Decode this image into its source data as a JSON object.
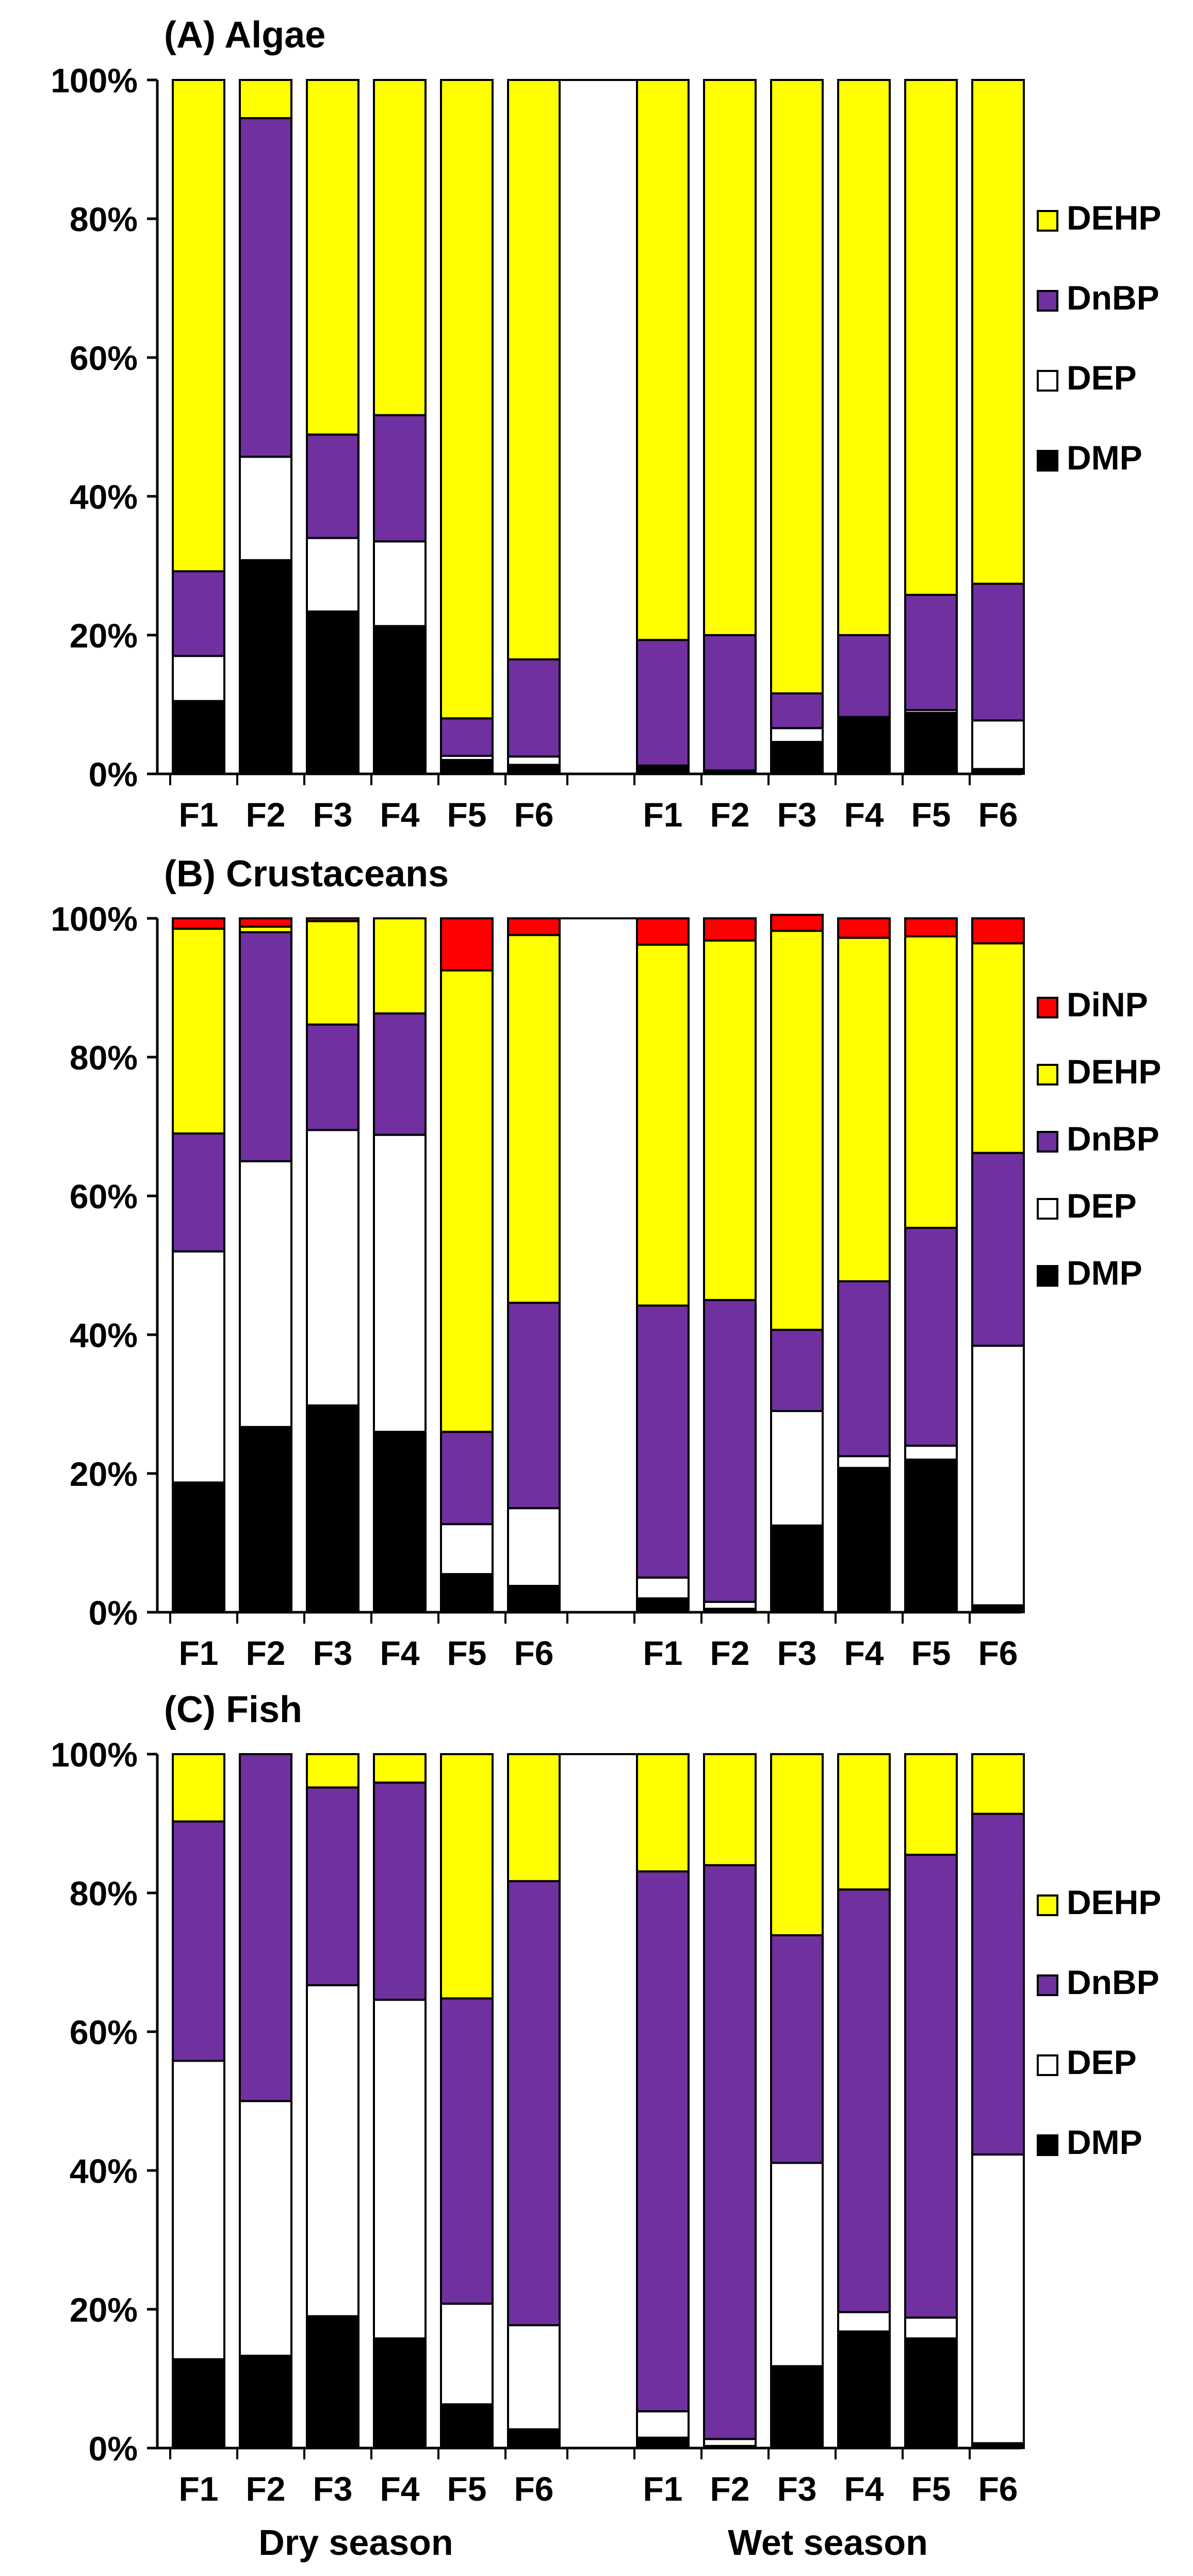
{
  "colors": {
    "DMP": "#000000",
    "DEP": "#ffffff",
    "DnBP": "#7030a0",
    "DEHP": "#ffff00",
    "DiNP": "#ff0000",
    "stroke": "#000000"
  },
  "x_labels": {
    "dry_season": "Dry season",
    "wet_season": "Wet season"
  },
  "chart_data": [
    {
      "type": "bar",
      "stacked": true,
      "title": "(A) Algae",
      "ylabel": "",
      "ylim": [
        0,
        100
      ],
      "y_ticks": [
        "0%",
        "20%",
        "40%",
        "60%",
        "80%",
        "100%"
      ],
      "groups": [
        {
          "name": "Dry season",
          "categories": [
            "F1",
            "F2",
            "F3",
            "F4",
            "F5",
            "F6"
          ]
        },
        {
          "name": "Wet season",
          "categories": [
            "F1",
            "F2",
            "F3",
            "F4",
            "F5",
            "F6"
          ]
        }
      ],
      "legend": [
        "DEHP",
        "DnBP",
        "DEP",
        "DMP"
      ],
      "series": [
        {
          "name": "DMP",
          "values": [
            10.5,
            30.8,
            23.4,
            21.3,
            2.0,
            1.3,
            1.0,
            0.3,
            4.6,
            8.0,
            8.8,
            0.7
          ]
        },
        {
          "name": "DEP",
          "values": [
            6.5,
            14.9,
            10.6,
            12.2,
            0.6,
            1.2,
            0.2,
            0.2,
            2.0,
            0.2,
            0.4,
            7.0
          ]
        },
        {
          "name": "DnBP",
          "values": [
            12.2,
            48.8,
            14.9,
            18.2,
            5.4,
            14.0,
            18.1,
            19.5,
            5.0,
            11.8,
            16.6,
            19.7
          ]
        },
        {
          "name": "DEHP",
          "values": [
            70.8,
            5.5,
            51.1,
            48.3,
            92.0,
            83.5,
            80.7,
            80.0,
            88.4,
            80.0,
            74.2,
            72.6
          ]
        }
      ]
    },
    {
      "type": "bar",
      "stacked": true,
      "title": "(B) Crustaceans",
      "ylabel": "",
      "ylim": [
        0,
        100
      ],
      "y_ticks": [
        "0%",
        "20%",
        "40%",
        "60%",
        "80%",
        "100%"
      ],
      "groups": [
        {
          "name": "Dry season",
          "categories": [
            "F1",
            "F2",
            "F3",
            "F4",
            "F5",
            "F6"
          ]
        },
        {
          "name": "Wet season",
          "categories": [
            "F1",
            "F2",
            "F3",
            "F4",
            "F5",
            "F6"
          ]
        }
      ],
      "legend": [
        "DiNP",
        "DEHP",
        "DnBP",
        "DEP",
        "DMP"
      ],
      "series": [
        {
          "name": "DMP",
          "values": [
            18.7,
            26.7,
            29.8,
            26.0,
            5.5,
            3.8,
            2.0,
            0.5,
            12.5,
            20.8,
            22.0,
            1.0
          ]
        },
        {
          "name": "DEP",
          "values": [
            33.3,
            38.3,
            39.7,
            42.8,
            7.2,
            11.2,
            3.0,
            1.0,
            16.5,
            1.7,
            2.0,
            37.4
          ]
        },
        {
          "name": "DnBP",
          "values": [
            17.0,
            33.0,
            15.2,
            17.5,
            13.3,
            29.6,
            39.2,
            43.5,
            11.7,
            25.2,
            31.4,
            27.8
          ]
        },
        {
          "name": "DEHP",
          "values": [
            29.5,
            0.8,
            14.9,
            13.7,
            66.5,
            53.0,
            52.0,
            51.8,
            57.5,
            49.5,
            42.0,
            30.2
          ]
        },
        {
          "name": "DiNP",
          "values": [
            1.5,
            1.2,
            0.4,
            0.0,
            7.5,
            2.4,
            3.8,
            3.2,
            2.3,
            2.8,
            2.6,
            3.6
          ]
        }
      ]
    },
    {
      "type": "bar",
      "stacked": true,
      "title": "(C) Fish",
      "ylabel": "",
      "ylim": [
        0,
        100
      ],
      "y_ticks": [
        "0%",
        "20%",
        "40%",
        "60%",
        "80%",
        "100%"
      ],
      "groups": [
        {
          "name": "Dry season",
          "categories": [
            "F1",
            "F2",
            "F3",
            "F4",
            "F5",
            "F6"
          ]
        },
        {
          "name": "Wet season",
          "categories": [
            "F1",
            "F2",
            "F3",
            "F4",
            "F5",
            "F6"
          ]
        }
      ],
      "legend": [
        "DEHP",
        "DnBP",
        "DEP",
        "DMP"
      ],
      "series": [
        {
          "name": "DMP",
          "values": [
            12.8,
            13.3,
            19.0,
            15.8,
            6.3,
            2.7,
            1.5,
            0.3,
            11.8,
            16.8,
            15.8,
            0.7
          ]
        },
        {
          "name": "DEP",
          "values": [
            43.0,
            36.7,
            47.7,
            48.8,
            14.5,
            15.0,
            3.8,
            1.0,
            29.3,
            2.8,
            3.0,
            41.6
          ]
        },
        {
          "name": "DnBP",
          "values": [
            34.5,
            50.0,
            28.5,
            31.3,
            44.0,
            64.0,
            77.8,
            82.7,
            32.8,
            60.9,
            66.7,
            49.1
          ]
        },
        {
          "name": "DEHP",
          "values": [
            9.7,
            0.0,
            4.8,
            4.1,
            35.2,
            18.3,
            16.9,
            16.0,
            26.1,
            19.5,
            14.5,
            8.6
          ]
        }
      ]
    }
  ]
}
